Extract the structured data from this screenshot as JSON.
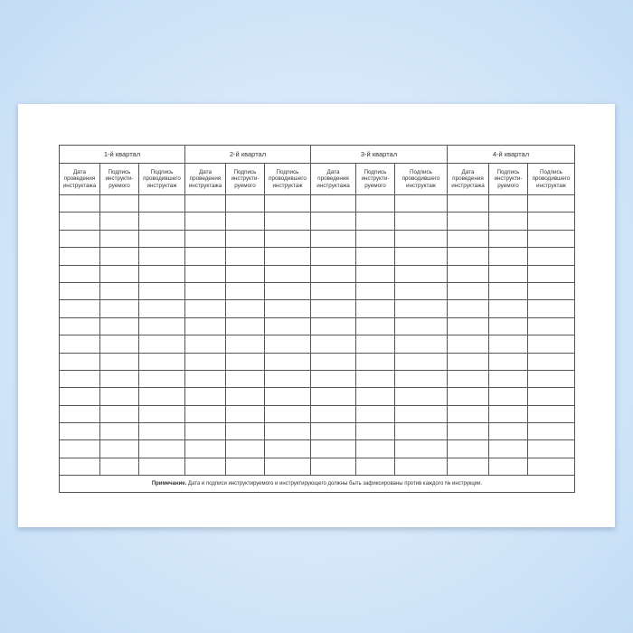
{
  "quarters": [
    "1-й квартал",
    "2-й квартал",
    "3-й квартал",
    "4-й квартал"
  ],
  "subheaders": [
    "Дата проведения инструктажа",
    "Подпись инструкти-руемого",
    "Подпись проводившего инструктаж"
  ],
  "row_count": 16,
  "note": {
    "label": "Примечание.",
    "text": " Дата и подписи инструктируемого и инструктирующего должны быть зафиксированы против каждого № инструкции."
  },
  "colors": {
    "background": "#cfe4f8",
    "paper": "#ffffff",
    "lines": "#555555"
  }
}
